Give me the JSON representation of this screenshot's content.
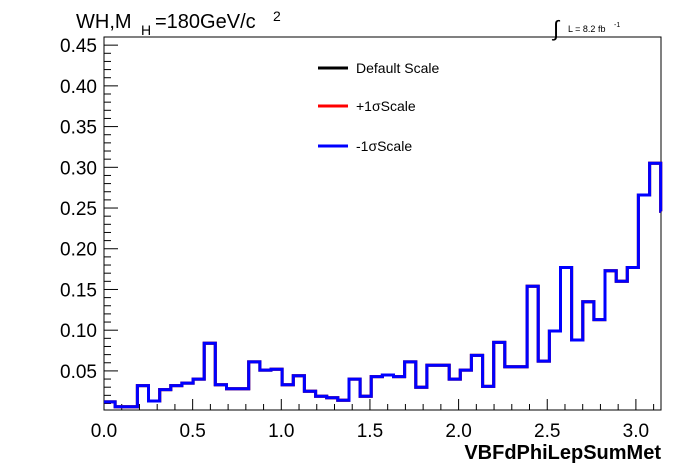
{
  "chart_data": {
    "type": "line",
    "title_main": "WH,M",
    "title_sub": "H",
    "title_rest": "=180GeV/c",
    "title_sup": "2",
    "lumi_label": "L = 8.2 fb",
    "lumi_sup": "-1",
    "xlabel": "VBFdPhiLepSumMet",
    "ylabel": "",
    "xlim": [
      0,
      3.1416
    ],
    "ylim": [
      0.002,
      0.46
    ],
    "bin_width": 0.0628,
    "x_ticks": [
      "0.0",
      "0.5",
      "1.0",
      "1.5",
      "2.0",
      "2.5",
      "3.0"
    ],
    "x_tick_values": [
      0,
      0.5,
      1.0,
      1.5,
      2.0,
      2.5,
      3.0
    ],
    "y_ticks": [
      "0.05",
      "0.10",
      "0.15",
      "0.20",
      "0.25",
      "0.30",
      "0.35",
      "0.40",
      "0.45"
    ],
    "y_tick_values": [
      0.05,
      0.1,
      0.15,
      0.2,
      0.25,
      0.3,
      0.35,
      0.4,
      0.45
    ],
    "grid": false,
    "legend_position": "top-center",
    "series": [
      {
        "name": "Default Scale",
        "color": "#000000",
        "values": [
          0.012,
          0.006,
          0.006,
          0.032,
          0.013,
          0.027,
          0.032,
          0.035,
          0.04,
          0.084,
          0.033,
          0.028,
          0.028,
          0.061,
          0.051,
          0.052,
          0.033,
          0.044,
          0.025,
          0.019,
          0.017,
          0.014,
          0.04,
          0.019,
          0.043,
          0.045,
          0.043,
          0.061,
          0.03,
          0.057,
          0.057,
          0.04,
          0.051,
          0.069,
          0.031,
          0.085,
          0.055,
          0.055,
          0.154,
          0.062,
          0.099,
          0.177,
          0.088,
          0.135,
          0.113,
          0.173,
          0.16,
          0.177,
          0.266,
          0.305,
          0.246
        ]
      },
      {
        "name": "+1σScale",
        "color": "#ff0000",
        "values": [
          0.012,
          0.006,
          0.006,
          0.032,
          0.013,
          0.027,
          0.032,
          0.035,
          0.04,
          0.084,
          0.033,
          0.028,
          0.028,
          0.061,
          0.051,
          0.052,
          0.033,
          0.044,
          0.025,
          0.019,
          0.017,
          0.014,
          0.04,
          0.019,
          0.043,
          0.045,
          0.043,
          0.061,
          0.03,
          0.057,
          0.057,
          0.04,
          0.051,
          0.069,
          0.031,
          0.085,
          0.055,
          0.055,
          0.154,
          0.062,
          0.099,
          0.177,
          0.088,
          0.135,
          0.113,
          0.173,
          0.16,
          0.177,
          0.266,
          0.305,
          0.246
        ]
      },
      {
        "name": "-1σScale",
        "color": "#0000ff",
        "values": [
          0.012,
          0.006,
          0.006,
          0.032,
          0.013,
          0.027,
          0.032,
          0.035,
          0.04,
          0.084,
          0.033,
          0.028,
          0.028,
          0.061,
          0.051,
          0.052,
          0.033,
          0.044,
          0.025,
          0.019,
          0.017,
          0.014,
          0.04,
          0.019,
          0.043,
          0.045,
          0.043,
          0.061,
          0.03,
          0.057,
          0.057,
          0.04,
          0.051,
          0.069,
          0.031,
          0.085,
          0.055,
          0.055,
          0.154,
          0.062,
          0.099,
          0.177,
          0.088,
          0.135,
          0.113,
          0.173,
          0.16,
          0.177,
          0.266,
          0.305,
          0.246
        ]
      }
    ]
  }
}
